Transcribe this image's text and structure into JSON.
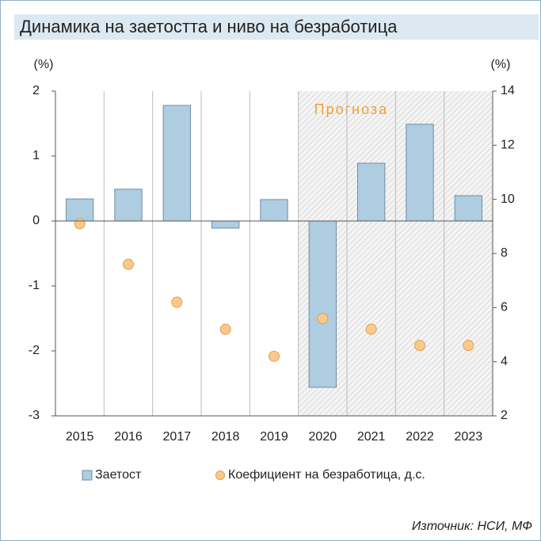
{
  "chart_data": {
    "type": "bar",
    "title": "Динамика на заетостта и ниво на безработица",
    "ylabel": "(%)",
    "y2label": "(%)",
    "source": "Източник: НСИ, МФ",
    "annotation": "Прогноза",
    "forecast_from": "2020",
    "categories": [
      "2015",
      "2016",
      "2017",
      "2018",
      "2019",
      "2020",
      "2021",
      "2022",
      "2023"
    ],
    "series": [
      {
        "name": "Заетост",
        "type": "bar",
        "color": "#aecde1",
        "values": [
          0.34,
          0.49,
          1.78,
          -0.11,
          0.33,
          -2.56,
          0.89,
          1.49,
          0.39
        ]
      },
      {
        "name": "Коефициент на безработица, д.с.",
        "type": "scatter",
        "axis": "y2",
        "color": "#fbc98b",
        "values": [
          9.1,
          7.6,
          6.2,
          5.2,
          4.2,
          5.6,
          5.2,
          4.6,
          4.6
        ]
      }
    ],
    "ylim": [
      -3,
      2
    ],
    "yticks": [
      -3,
      -2,
      -1,
      0,
      1,
      2
    ],
    "y2lim": [
      2,
      14
    ],
    "y2ticks": [
      2,
      4,
      6,
      8,
      10,
      12,
      14
    ]
  }
}
